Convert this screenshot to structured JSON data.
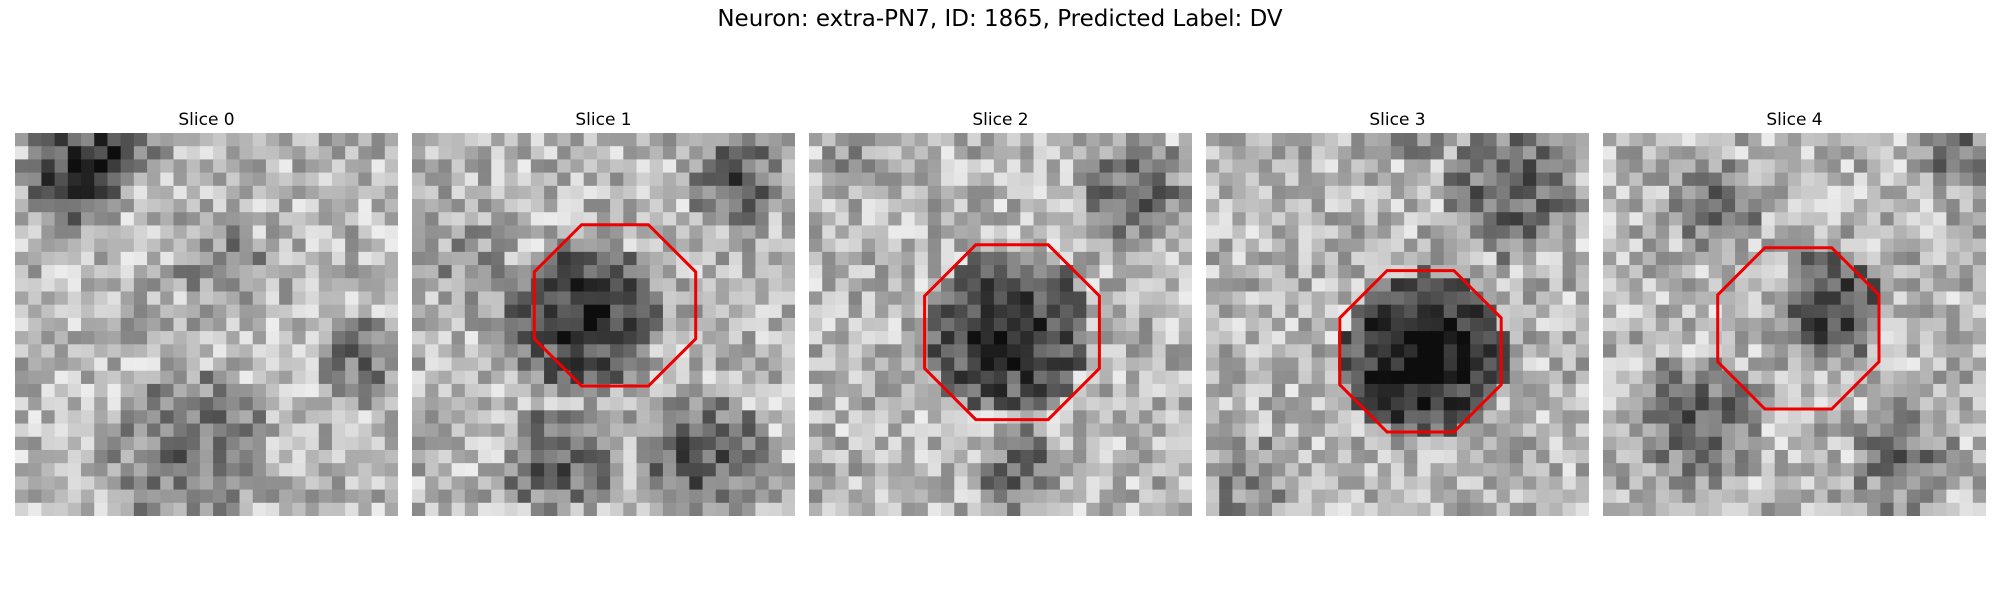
{
  "figure": {
    "title": "Neuron: extra-PN7, ID: 1865, Predicted Label: DV"
  },
  "panels": [
    {
      "title": "Slice 0",
      "has_contour": false,
      "seed": 11
    },
    {
      "title": "Slice 1",
      "has_contour": true,
      "seed": 23
    },
    {
      "title": "Slice 2",
      "has_contour": true,
      "seed": 37
    },
    {
      "title": "Slice 3",
      "has_contour": true,
      "seed": 53
    },
    {
      "title": "Slice 4",
      "has_contour": true,
      "seed": 71
    }
  ],
  "colors": {
    "contour": "#ee0000",
    "background": "#ffffff"
  },
  "colormap": "gray"
}
